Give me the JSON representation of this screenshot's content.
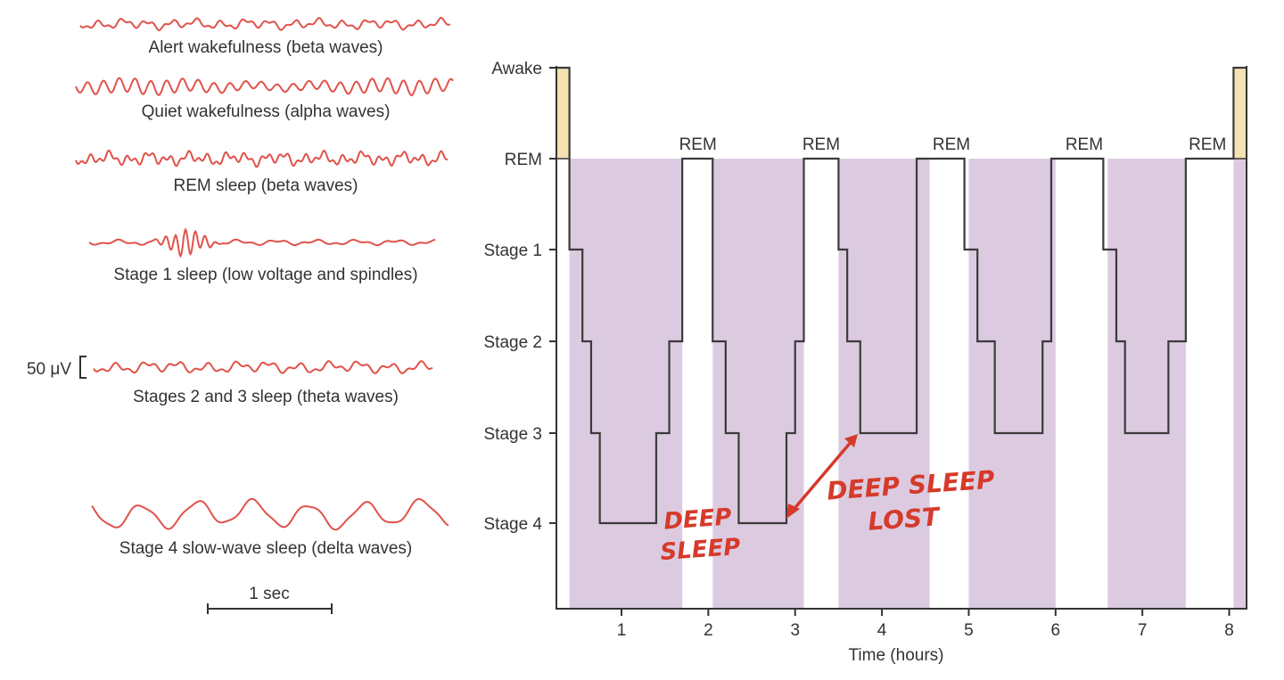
{
  "eeg_panel": {
    "traces": [
      {
        "label": "Alert wakefulness (beta waves)",
        "pattern": "beta-small"
      },
      {
        "label": "Quiet wakefulness (alpha waves)",
        "pattern": "alpha"
      },
      {
        "label": "REM sleep (beta waves)",
        "pattern": "beta-irregular"
      },
      {
        "label": "Stage 1 sleep (low voltage and spindles)",
        "pattern": "spindle"
      },
      {
        "label": "Stages 2 and 3 sleep (theta waves)",
        "pattern": "theta"
      },
      {
        "label": "Stage 4 slow-wave sleep (delta waves)",
        "pattern": "delta"
      }
    ],
    "voltage_scale_label": "50 μV",
    "time_scale_label": "1 sec",
    "trace_color": "#e0524a"
  },
  "chart_data": {
    "type": "line",
    "xlabel": "Time (hours)",
    "ylabel": "",
    "x_ticks": [
      1,
      2,
      3,
      4,
      5,
      6,
      7,
      8
    ],
    "xlim": [
      0.25,
      8.2
    ],
    "y_levels": [
      "Awake",
      "REM",
      "Stage 1",
      "Stage 2",
      "Stage 3",
      "Stage 4"
    ],
    "hypnogram_steps": [
      [
        0.25,
        "Awake"
      ],
      [
        0.4,
        "Stage 1"
      ],
      [
        0.55,
        "Stage 2"
      ],
      [
        0.65,
        "Stage 3"
      ],
      [
        0.75,
        "Stage 4"
      ],
      [
        1.4,
        "Stage 3"
      ],
      [
        1.55,
        "Stage 2"
      ],
      [
        1.7,
        "REM"
      ],
      [
        2.05,
        "Stage 2"
      ],
      [
        2.2,
        "Stage 3"
      ],
      [
        2.35,
        "Stage 4"
      ],
      [
        2.9,
        "Stage 3"
      ],
      [
        3.0,
        "Stage 2"
      ],
      [
        3.1,
        "REM"
      ],
      [
        3.5,
        "Stage 1"
      ],
      [
        3.6,
        "Stage 2"
      ],
      [
        3.75,
        "Stage 3"
      ],
      [
        4.4,
        "REM"
      ],
      [
        4.95,
        "Stage 1"
      ],
      [
        5.1,
        "Stage 2"
      ],
      [
        5.3,
        "Stage 3"
      ],
      [
        5.85,
        "Stage 2"
      ],
      [
        5.95,
        "REM"
      ],
      [
        6.55,
        "Stage 1"
      ],
      [
        6.7,
        "Stage 2"
      ],
      [
        6.8,
        "Stage 3"
      ],
      [
        7.3,
        "Stage 2"
      ],
      [
        7.5,
        "REM"
      ],
      [
        8.05,
        "Awake"
      ],
      [
        8.2,
        "Awake"
      ]
    ],
    "rem_labels": [
      {
        "text": "REM",
        "x": 1.88
      },
      {
        "text": "REM",
        "x": 3.3
      },
      {
        "text": "REM",
        "x": 4.8
      },
      {
        "text": "REM",
        "x": 6.33
      },
      {
        "text": "REM",
        "x": 7.75
      }
    ],
    "awake_intervals": [
      [
        0.25,
        0.4
      ],
      [
        8.05,
        8.2
      ]
    ],
    "shaded_intervals": [
      [
        0.4,
        1.7
      ],
      [
        2.05,
        3.1
      ],
      [
        3.5,
        4.55
      ],
      [
        5.0,
        6.0
      ],
      [
        6.6,
        7.5
      ],
      [
        8.05,
        8.2
      ]
    ],
    "annotations": [
      {
        "text_lines": [
          "DEEP",
          "SLEEP"
        ]
      },
      {
        "text_lines": [
          "DEEP SLEEP",
          "LOST"
        ]
      }
    ],
    "colors": {
      "awake": "#f5e2b3",
      "sleep_shade": "#dccbe0",
      "line": "#3a3a3a",
      "annotation": "#d63a2a"
    }
  }
}
